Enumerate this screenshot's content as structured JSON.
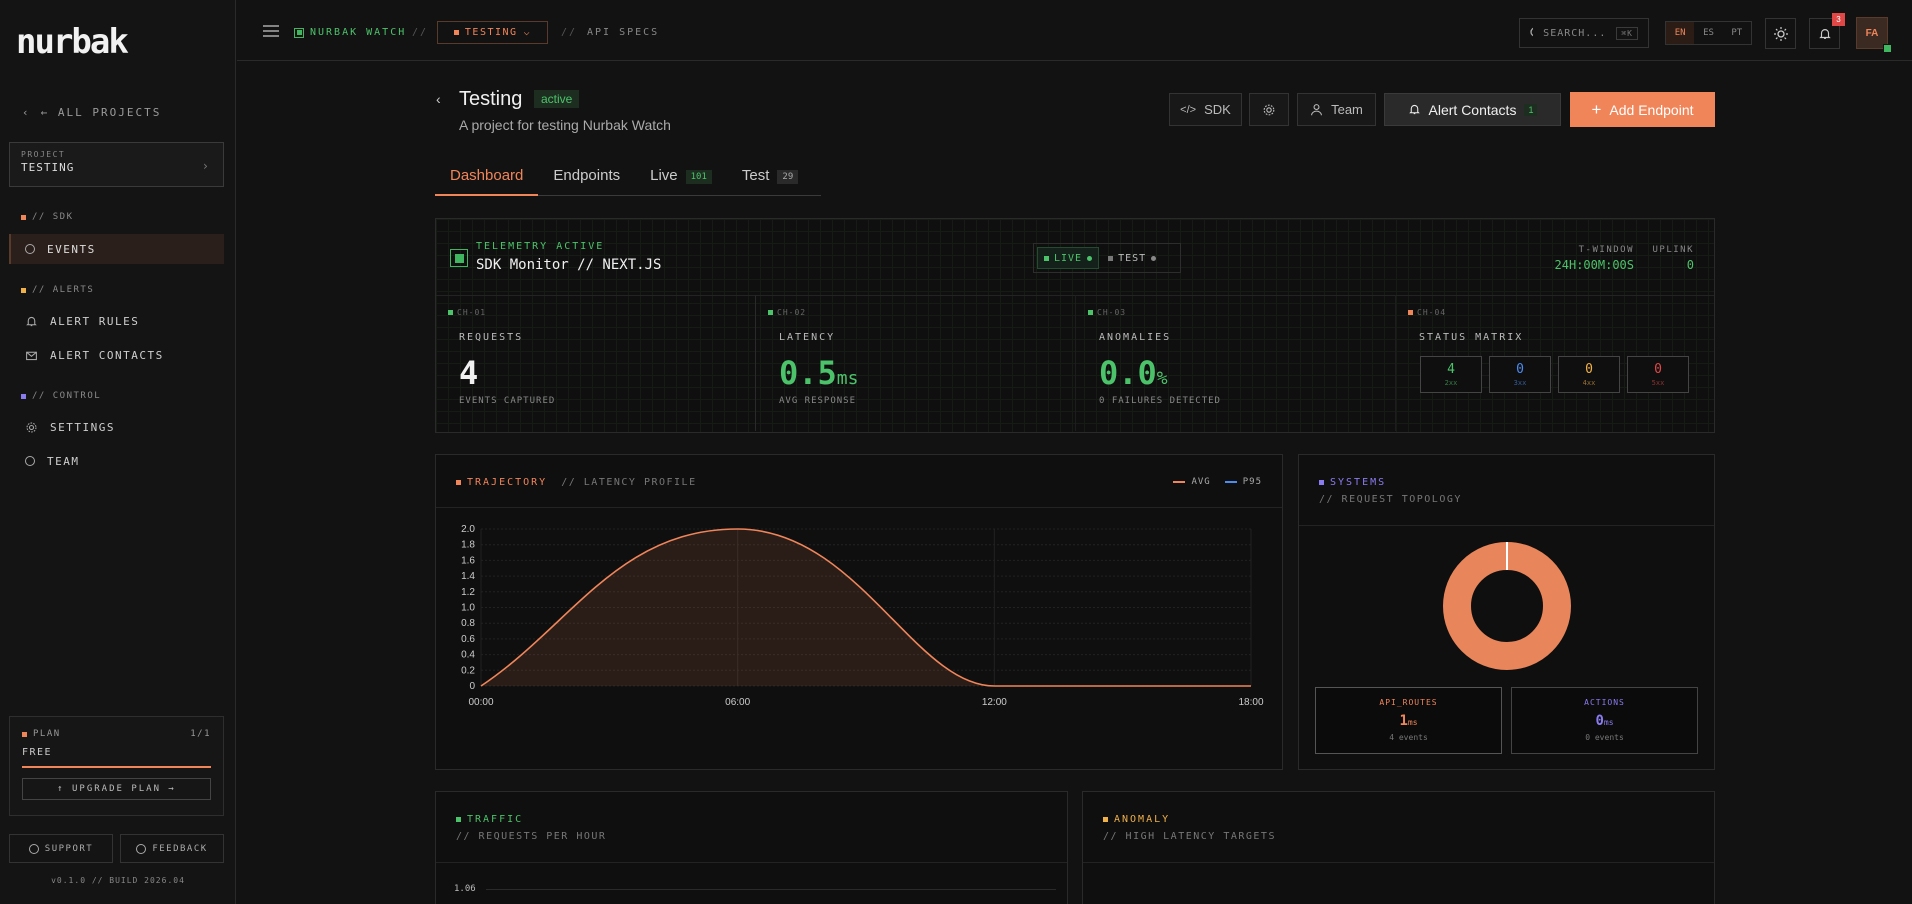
{
  "sidebar": {
    "logo": "nurbak",
    "back": "← ALL PROJECTS",
    "project_key": "PROJECT",
    "project_name": "TESTING",
    "sections": [
      {
        "label": "// SDK",
        "color": "#f0855a"
      },
      {
        "label": "// ALERTS",
        "color": "#f0b04a"
      },
      {
        "label": "// CONTROL",
        "color": "#8a7cf0"
      }
    ],
    "items": [
      {
        "label": "EVENTS",
        "icon": "circle-icon"
      },
      {
        "label": "ALERT RULES",
        "icon": "bell-icon"
      },
      {
        "label": "ALERT CONTACTS",
        "icon": "mail-icon"
      },
      {
        "label": "SETTINGS",
        "icon": "gear-icon"
      },
      {
        "label": "TEAM",
        "icon": "circle-icon"
      }
    ],
    "plan": {
      "key": "PLAN",
      "usage": "1/1",
      "name": "FREE",
      "upgrade": "↑ UPGRADE PLAN →"
    },
    "support": "SUPPORT",
    "feedback": "FEEDBACK",
    "version": "v0.1.0 // BUILD 2026.04"
  },
  "topbar": {
    "brand": "NURBAK WATCH",
    "sep": "//",
    "env": "TESTING",
    "page": "API SPECS",
    "search_placeholder": "SEARCH...",
    "search_kbd": "⌘K",
    "langs": [
      "EN",
      "ES",
      "PT"
    ],
    "notif_count": "3",
    "avatar": "FA"
  },
  "header": {
    "title": "Testing",
    "status": "active",
    "subtitle": "A project for testing Nurbak Watch",
    "sdk": "SDK",
    "team": "Team",
    "alert_contacts": "Alert Contacts",
    "alert_count": "1",
    "add_endpoint": "Add Endpoint"
  },
  "tabs": [
    {
      "label": "Dashboard"
    },
    {
      "label": "Endpoints"
    },
    {
      "label": "Live",
      "count": "101"
    },
    {
      "label": "Test",
      "count": "29"
    }
  ],
  "telemetry": {
    "key": "TELEMETRY ACTIVE",
    "title": "SDK Monitor // NEXT.JS",
    "live": "LIVE",
    "test": "TEST",
    "window_key": "T-WINDOW",
    "window_val": "24H:00M:00S",
    "uplink_key": "UPLINK",
    "uplink_val": "0",
    "metrics": [
      {
        "ch": "CH-01",
        "label": "REQUESTS",
        "value": "4",
        "unit": "",
        "sub": "EVENTS CAPTURED"
      },
      {
        "ch": "CH-02",
        "label": "LATENCY",
        "value": "0.5",
        "unit": "ms",
        "sub": "AVG RESPONSE"
      },
      {
        "ch": "CH-03",
        "label": "ANOMALIES",
        "value": "0.0",
        "unit": "%",
        "sub": "0 FAILURES DETECTED"
      },
      {
        "ch": "CH-04",
        "label": "STATUS MATRIX"
      }
    ],
    "status_matrix": [
      {
        "n": "4",
        "code": "2xx",
        "color": "#4cc36a"
      },
      {
        "n": "0",
        "code": "3xx",
        "color": "#4a8cf0"
      },
      {
        "n": "0",
        "code": "4xx",
        "color": "#f0b04a"
      },
      {
        "n": "0",
        "code": "5xx",
        "color": "#e04848"
      }
    ]
  },
  "trajectory": {
    "key": "TRAJECTORY",
    "sub": "// LATENCY PROFILE",
    "legend_avg": "AVG",
    "legend_p95": "P95"
  },
  "chart_data": {
    "type": "area",
    "x": [
      "00:00",
      "06:00",
      "12:00",
      "18:00"
    ],
    "series": [
      {
        "name": "AVG",
        "points": [
          [
            0,
            0
          ],
          [
            6,
            2.0
          ],
          [
            12,
            0
          ],
          [
            18,
            0
          ]
        ],
        "color": "#f0855a"
      },
      {
        "name": "P95",
        "points": [],
        "color": "#4a8cf0"
      }
    ],
    "yticks": [
      "0",
      "0.2",
      "0.4",
      "0.6",
      "0.8",
      "1.0",
      "1.2",
      "1.4",
      "1.6",
      "1.8",
      "2.0"
    ],
    "xlim": [
      0,
      18
    ],
    "ylim": [
      0,
      2.0
    ]
  },
  "systems": {
    "key": "SYSTEMS",
    "sub": "// REQUEST TOPOLOGY",
    "boxes": [
      {
        "name": "API_ROUTES",
        "value": "1",
        "unit": "ms",
        "events": "4 events",
        "color": "#f0855a"
      },
      {
        "name": "ACTIONS",
        "value": "0",
        "unit": "ms",
        "events": "0 events",
        "color": "#8a7cf0"
      }
    ]
  },
  "traffic": {
    "key": "TRAFFIC",
    "sub": "// REQUESTS PER HOUR",
    "ytick": "1.06"
  },
  "anomaly": {
    "key": "ANOMALY",
    "sub": "// HIGH LATENCY TARGETS"
  }
}
